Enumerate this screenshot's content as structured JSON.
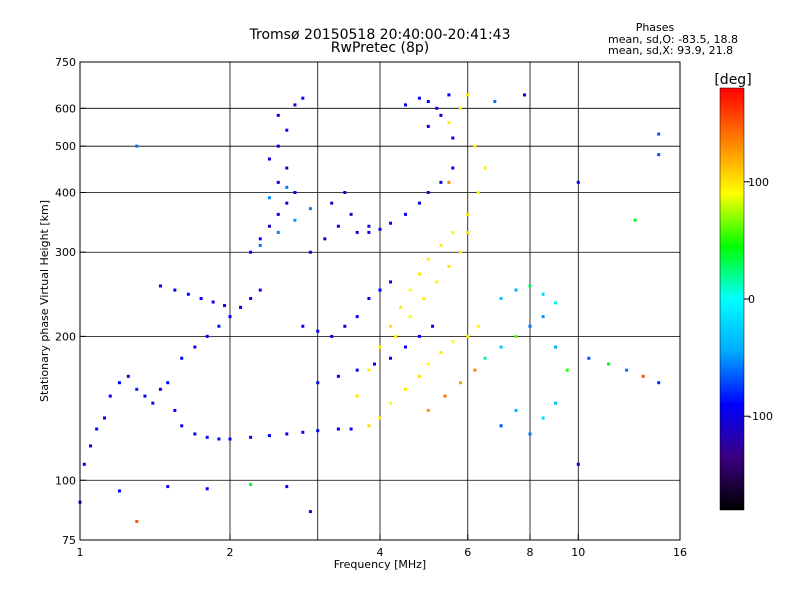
{
  "header": {
    "title_line1": "Tromsø 20150518 20:40:00-20:41:43",
    "title_line2": "RwPretec (8p)",
    "phases_heading": "Phases",
    "phase_o": "mean, sd,O: -83.5, 18.8",
    "phase_x": "mean, sd,X: 93.9, 21.8"
  },
  "chart_data": {
    "type": "scatter",
    "xlabel": "Frequency [MHz]",
    "ylabel": "Stationary phase Virtual Height [km]",
    "xscale": "log",
    "yscale": "log",
    "xlim": [
      1,
      16
    ],
    "ylim": [
      75,
      750
    ],
    "x_ticks": [
      1,
      2,
      4,
      6,
      8,
      10,
      16
    ],
    "x_tick_labels": [
      "1",
      "2",
      "4",
      "6",
      "8",
      "10",
      "16"
    ],
    "x_gridlines": [
      2,
      3,
      4,
      6,
      8,
      10
    ],
    "y_ticks": [
      75,
      100,
      200,
      300,
      400,
      500,
      600,
      750
    ],
    "y_tick_labels": [
      "75",
      "100",
      "200",
      "300",
      "400",
      "500",
      "600",
      "750"
    ],
    "y_gridlines": [
      100,
      200,
      300,
      400,
      500,
      600
    ],
    "grid": true,
    "colorbar": {
      "label": "[deg]",
      "range": [
        -180,
        180
      ],
      "ticks": [
        100,
        0,
        -100
      ],
      "tick_labels": [
        "100",
        "0",
        "-100"
      ],
      "colors": [
        "#000000",
        "#3a0080",
        "#0000ff",
        "#00aaff",
        "#00ffff",
        "#00ff00",
        "#ffff00",
        "#ff8000",
        "#ff0000"
      ]
    },
    "series": [
      {
        "points": [
          [
            1.02,
            108,
            -90
          ],
          [
            1.05,
            118,
            -95
          ],
          [
            1.08,
            128,
            -88
          ],
          [
            1.12,
            135,
            -92
          ],
          [
            1.15,
            150,
            -96
          ],
          [
            1.2,
            160,
            -90
          ],
          [
            1.25,
            165,
            -100
          ],
          [
            1.3,
            155,
            -85
          ],
          [
            1.35,
            150,
            -92
          ],
          [
            1.4,
            145,
            -88
          ],
          [
            1.45,
            155,
            -95
          ],
          [
            1.5,
            160,
            -90
          ],
          [
            1.55,
            140,
            -92
          ],
          [
            1.6,
            130,
            -96
          ],
          [
            1.7,
            125,
            -90
          ],
          [
            1.8,
            123,
            -94
          ],
          [
            1.9,
            122,
            -88
          ],
          [
            2.0,
            122,
            -92
          ],
          [
            2.2,
            123,
            -96
          ],
          [
            2.4,
            124,
            -90
          ],
          [
            2.6,
            125,
            -92
          ],
          [
            2.8,
            126,
            -88
          ],
          [
            3.0,
            127,
            -94
          ],
          [
            3.3,
            128,
            -90
          ],
          [
            3.5,
            128,
            -96
          ],
          [
            1.6,
            180,
            -88
          ],
          [
            1.7,
            190,
            -94
          ],
          [
            1.8,
            200,
            -92
          ],
          [
            1.9,
            210,
            -86
          ],
          [
            2.0,
            220,
            -90
          ],
          [
            2.1,
            230,
            -96
          ],
          [
            2.2,
            240,
            -100
          ],
          [
            2.3,
            250,
            -94
          ],
          [
            1.45,
            255,
            -92
          ],
          [
            1.55,
            250,
            -90
          ],
          [
            1.65,
            245,
            -88
          ],
          [
            1.75,
            240,
            -94
          ],
          [
            1.85,
            236,
            -96
          ],
          [
            1.95,
            232,
            -92
          ],
          [
            2.2,
            300,
            -95
          ],
          [
            2.3,
            320,
            -92
          ],
          [
            2.4,
            340,
            -110
          ],
          [
            2.5,
            360,
            -100
          ],
          [
            2.6,
            380,
            -105
          ],
          [
            2.7,
            400,
            -96
          ],
          [
            2.5,
            420,
            -98
          ],
          [
            2.6,
            450,
            -100
          ],
          [
            2.4,
            470,
            -102
          ],
          [
            2.5,
            500,
            -96
          ],
          [
            2.6,
            540,
            -94
          ],
          [
            2.5,
            580,
            -92
          ],
          [
            2.7,
            610,
            -100
          ],
          [
            2.8,
            630,
            -90
          ],
          [
            2.3,
            310,
            -60
          ],
          [
            2.5,
            330,
            -55
          ],
          [
            2.7,
            350,
            -50
          ],
          [
            2.9,
            370,
            -58
          ],
          [
            2.4,
            390,
            -52
          ],
          [
            2.6,
            410,
            -56
          ],
          [
            2.9,
            300,
            -105
          ],
          [
            3.1,
            320,
            -110
          ],
          [
            3.3,
            340,
            -100
          ],
          [
            3.5,
            360,
            -115
          ],
          [
            3.2,
            380,
            -112
          ],
          [
            3.4,
            400,
            -108
          ],
          [
            3.6,
            330,
            -104
          ],
          [
            3.8,
            340,
            -110
          ],
          [
            3.8,
            330,
            -96
          ],
          [
            4.0,
            335,
            -92
          ],
          [
            4.2,
            345,
            -90
          ],
          [
            4.5,
            360,
            -94
          ],
          [
            4.8,
            380,
            -96
          ],
          [
            5.0,
            400,
            -100
          ],
          [
            5.3,
            420,
            -92
          ],
          [
            5.6,
            450,
            -96
          ],
          [
            2.8,
            210,
            -96
          ],
          [
            3.0,
            205,
            -92
          ],
          [
            3.2,
            200,
            -100
          ],
          [
            3.4,
            210,
            -96
          ],
          [
            3.6,
            220,
            -92
          ],
          [
            3.8,
            240,
            -96
          ],
          [
            4.0,
            250,
            -90
          ],
          [
            4.2,
            260,
            -94
          ],
          [
            3.0,
            160,
            -96
          ],
          [
            3.3,
            165,
            -90
          ],
          [
            3.6,
            170,
            -92
          ],
          [
            3.9,
            175,
            -96
          ],
          [
            4.2,
            180,
            -92
          ],
          [
            4.5,
            190,
            -96
          ],
          [
            4.8,
            200,
            -90
          ],
          [
            5.1,
            210,
            -94
          ],
          [
            4.5,
            610,
            -92
          ],
          [
            4.8,
            630,
            -96
          ],
          [
            5.0,
            620,
            -90
          ],
          [
            5.2,
            600,
            -94
          ],
          [
            5.5,
            640,
            -92
          ],
          [
            5.3,
            580,
            -100
          ],
          [
            5.0,
            550,
            -96
          ],
          [
            5.6,
            520,
            -92
          ],
          [
            3.8,
            130,
            100
          ],
          [
            4.0,
            135,
            95
          ],
          [
            4.2,
            145,
            90
          ],
          [
            4.5,
            155,
            95
          ],
          [
            4.8,
            165,
            100
          ],
          [
            5.0,
            175,
            92
          ],
          [
            5.3,
            185,
            96
          ],
          [
            5.6,
            195,
            90
          ],
          [
            6.0,
            200,
            94
          ],
          [
            6.3,
            210,
            92
          ],
          [
            3.6,
            150,
            100
          ],
          [
            3.8,
            170,
            96
          ],
          [
            4.0,
            190,
            92
          ],
          [
            4.2,
            210,
            100
          ],
          [
            4.4,
            230,
            96
          ],
          [
            4.6,
            250,
            92
          ],
          [
            4.8,
            270,
            100
          ],
          [
            5.0,
            290,
            94
          ],
          [
            5.3,
            310,
            96
          ],
          [
            5.6,
            330,
            92
          ],
          [
            6.0,
            360,
            100
          ],
          [
            6.3,
            400,
            94
          ],
          [
            4.3,
            200,
            95
          ],
          [
            4.6,
            220,
            90
          ],
          [
            4.9,
            240,
            96
          ],
          [
            5.2,
            260,
            92
          ],
          [
            5.5,
            280,
            98
          ],
          [
            5.8,
            300,
            94
          ],
          [
            5.5,
            560,
            96
          ],
          [
            5.8,
            600,
            92
          ],
          [
            6.0,
            640,
            100
          ],
          [
            6.2,
            500,
            94
          ],
          [
            6.5,
            450,
            96
          ],
          [
            5.0,
            140,
            130
          ],
          [
            5.4,
            150,
            140
          ],
          [
            5.8,
            160,
            125
          ],
          [
            6.2,
            170,
            135
          ],
          [
            6.5,
            180,
            20
          ],
          [
            7.0,
            190,
            -30
          ],
          [
            7.5,
            200,
            60
          ],
          [
            8.0,
            210,
            -60
          ],
          [
            8.5,
            220,
            -50
          ],
          [
            9.0,
            190,
            -40
          ],
          [
            9.5,
            170,
            50
          ],
          [
            10.5,
            180,
            -70
          ],
          [
            11.5,
            175,
            40
          ],
          [
            12.5,
            170,
            -60
          ],
          [
            13.5,
            165,
            150
          ],
          [
            14.5,
            160,
            -80
          ],
          [
            7.0,
            240,
            -30
          ],
          [
            7.5,
            250,
            -40
          ],
          [
            8.0,
            255,
            30
          ],
          [
            8.5,
            245,
            -20
          ],
          [
            9.0,
            235,
            -10
          ],
          [
            7.0,
            130,
            -70
          ],
          [
            7.5,
            140,
            -40
          ],
          [
            8.0,
            125,
            -60
          ],
          [
            8.5,
            135,
            -20
          ],
          [
            9.0,
            145,
            -30
          ],
          [
            1.2,
            95,
            -90
          ],
          [
            1.5,
            97,
            -96
          ],
          [
            1.8,
            96,
            -92
          ],
          [
            2.2,
            98,
            40
          ],
          [
            2.6,
            97,
            -92
          ],
          [
            2.9,
            86,
            -96
          ],
          [
            1.3,
            82,
            150
          ],
          [
            1.0,
            90,
            -90
          ],
          [
            1.3,
            500,
            -60
          ],
          [
            10.0,
            420,
            -90
          ],
          [
            10.0,
            108,
            -100
          ],
          [
            14.5,
            480,
            -70
          ],
          [
            14.5,
            530,
            -70
          ],
          [
            13.0,
            350,
            40
          ],
          [
            6.0,
            330,
            100
          ],
          [
            5.5,
            420,
            130
          ],
          [
            6.8,
            620,
            -60
          ],
          [
            7.8,
            640,
            -90
          ]
        ]
      }
    ]
  }
}
